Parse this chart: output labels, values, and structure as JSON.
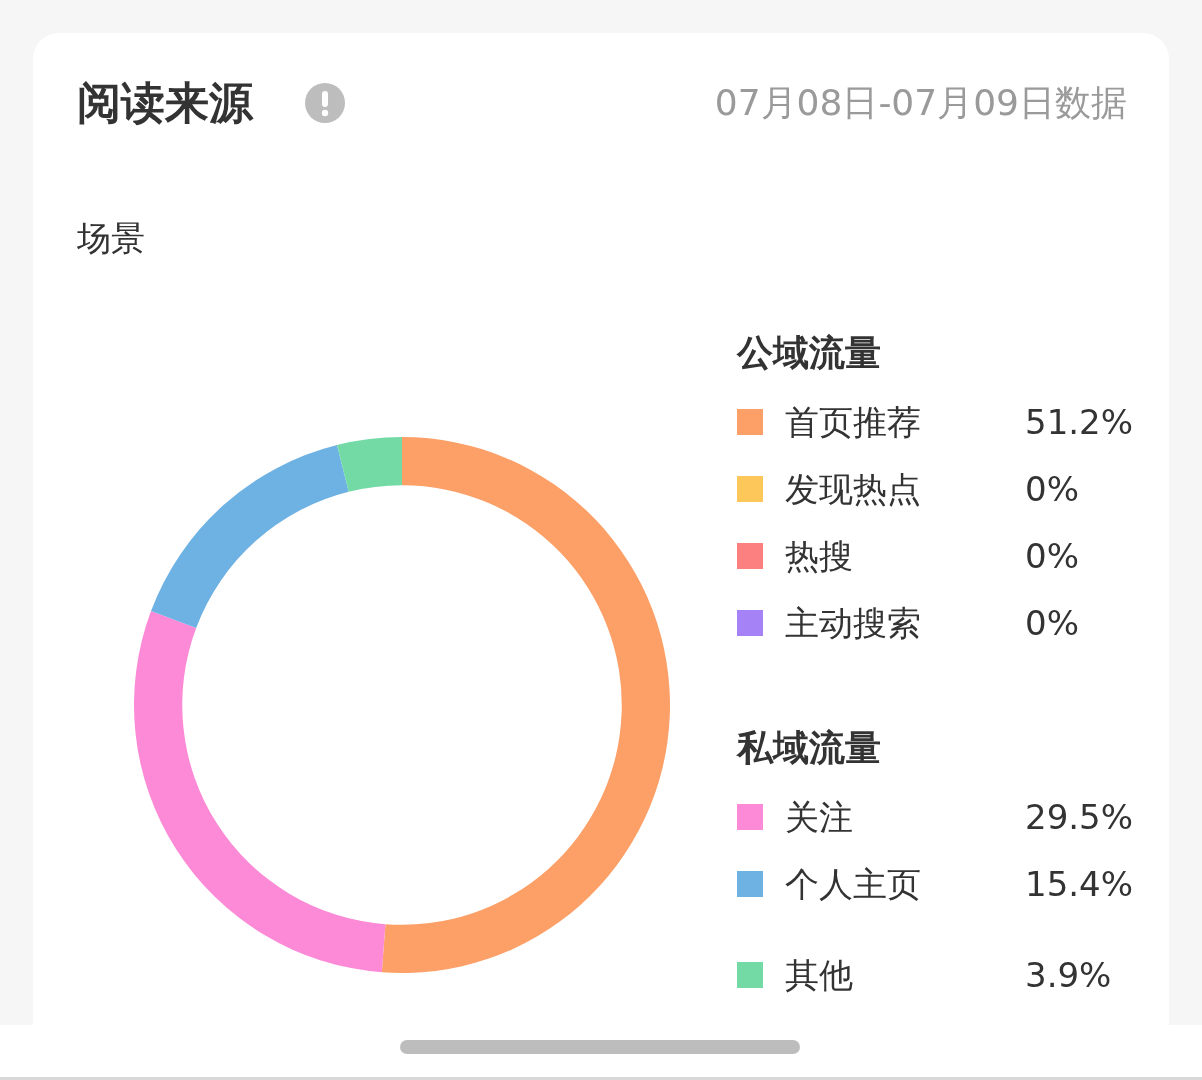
{
  "chart_data": {
    "type": "donut",
    "title": "阅读来源",
    "subtitle": "07月08日-07月09日数据",
    "annotations": [
      "场景",
      "公域流量",
      "私域流量"
    ],
    "categories": [
      "首页推荐",
      "发现热点",
      "热搜",
      "主动搜索",
      "关注",
      "个人主页",
      "其他"
    ],
    "values": [
      51.2,
      0,
      0,
      0,
      29.5,
      15.4,
      3.9
    ],
    "colors": [
      "#fda067",
      "#fdc759",
      "#fd8080",
      "#a583f6",
      "#fc8ad6",
      "#6eb2e4",
      "#73daa6"
    ],
    "value_labels": [
      "51.2%",
      "0%",
      "0%",
      "0%",
      "29.5%",
      "15.4%",
      "3.9%"
    ],
    "legend": "right"
  }
}
